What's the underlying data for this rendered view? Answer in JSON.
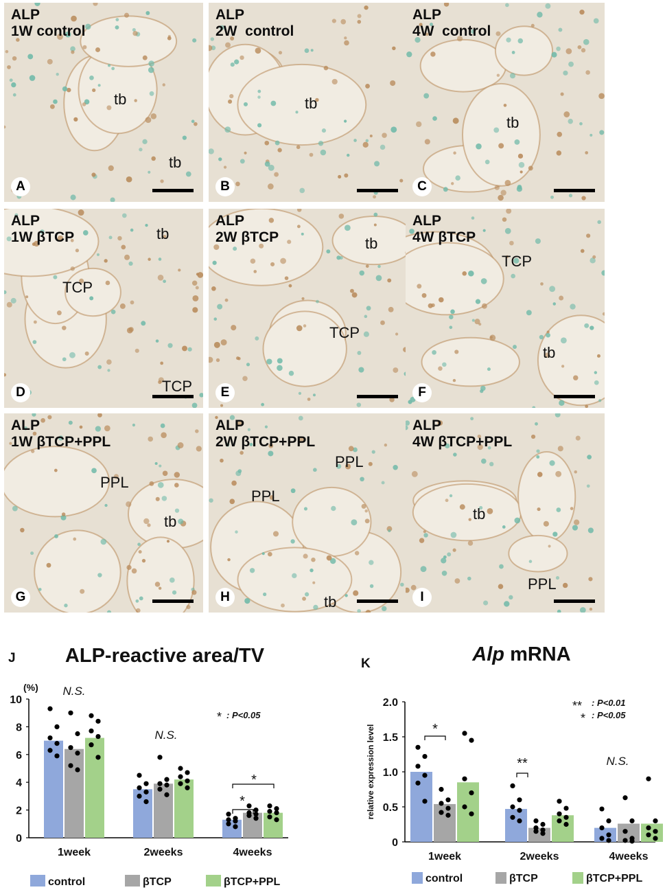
{
  "panels": [
    {
      "title": "ALP\n1W control",
      "letter": "A",
      "labels": [
        "tb",
        "tb"
      ]
    },
    {
      "title": "ALP\n2W  control",
      "letter": "B",
      "labels": [
        "tb"
      ]
    },
    {
      "title": "ALP\n4W  control",
      "letter": "C",
      "labels": [
        "tb"
      ]
    },
    {
      "title": "ALP\n1W βTCP",
      "letter": "D",
      "labels": [
        "tb",
        "TCP",
        "TCP"
      ]
    },
    {
      "title": "ALP\n2W βTCP",
      "letter": "E",
      "labels": [
        "tb",
        "TCP"
      ]
    },
    {
      "title": "ALP\n4W βTCP",
      "letter": "F",
      "labels": [
        "TCP",
        "tb"
      ]
    },
    {
      "title": "ALP\n1W βTCP+PPL",
      "letter": "G",
      "labels": [
        "PPL",
        "tb"
      ]
    },
    {
      "title": "ALP\n2W βTCP+PPL",
      "letter": "H",
      "labels": [
        "PPL",
        "PPL",
        "tb"
      ]
    },
    {
      "title": "ALP\n4W βTCP+PPL",
      "letter": "I",
      "labels": [
        "tb",
        "PPL"
      ]
    }
  ],
  "colors": {
    "control": "#8fa8db",
    "btcp": "#a6a6a6",
    "btcp_ppl": "#a3d18a",
    "stain": "#b88a5a",
    "counter": "#6fb9a8"
  },
  "chart_data": [
    {
      "type": "bar",
      "panel": "J",
      "title": "ALP-reactive area/TV",
      "unit": "(%)",
      "categories": [
        "1week",
        "2weeks",
        "4weeks"
      ],
      "series": [
        {
          "name": "control",
          "values": [
            7.0,
            3.5,
            1.3
          ],
          "points": [
            [
              9.3,
              8.0,
              7.2,
              6.8,
              6.3,
              5.9
            ],
            [
              4.5,
              3.9,
              3.6,
              3.3,
              3.0,
              2.6
            ],
            [
              1.7,
              1.4,
              1.3,
              1.2,
              1.0,
              0.8
            ]
          ]
        },
        {
          "name": "βTCP",
          "values": [
            6.4,
            3.9,
            1.8
          ],
          "points": [
            [
              9.0,
              7.5,
              6.5,
              6.1,
              5.2,
              4.9
            ],
            [
              5.8,
              4.2,
              3.9,
              3.8,
              3.5,
              3.1
            ],
            [
              2.3,
              2.0,
              1.8,
              1.7,
              1.6,
              1.4
            ]
          ]
        },
        {
          "name": "βTCP+PPL",
          "values": [
            7.2,
            4.2,
            1.8
          ],
          "points": [
            [
              8.8,
              8.4,
              7.7,
              7.3,
              6.7,
              5.8
            ],
            [
              5.0,
              4.7,
              4.4,
              4.1,
              3.9,
              3.6
            ],
            [
              2.3,
              2.1,
              1.9,
              1.8,
              1.5,
              1.3
            ]
          ]
        }
      ],
      "ylim": [
        0,
        10
      ],
      "yticks": [
        "0",
        "2",
        "4",
        "6",
        "8",
        "10"
      ],
      "annotations": {
        "group1": "N.S.",
        "group2": "N.S.",
        "sig1": "*",
        "sig2": "*",
        "legend_sym": "*",
        "legend_text": ": P<0.05"
      }
    },
    {
      "type": "bar",
      "panel": "K",
      "title_italic": "Alp",
      "title_rest": " mRNA",
      "ylabel": "relative expression level",
      "categories": [
        "1week",
        "2weeks",
        "4weeks"
      ],
      "series": [
        {
          "name": "control",
          "values": [
            1.0,
            0.47,
            0.2
          ],
          "points": [
            [
              1.35,
              1.22,
              1.08,
              0.95,
              0.84,
              0.58
            ],
            [
              0.8,
              0.6,
              0.5,
              0.45,
              0.35,
              0.3
            ],
            [
              0.47,
              0.3,
              0.2,
              0.1,
              0.05,
              0.02
            ]
          ]
        },
        {
          "name": "βTCP",
          "values": [
            0.54,
            0.2,
            0.26
          ],
          "points": [
            [
              0.75,
              0.6,
              0.55,
              0.48,
              0.42,
              0.38
            ],
            [
              0.3,
              0.25,
              0.2,
              0.17,
              0.15,
              0.12
            ],
            [
              0.63,
              0.3,
              0.15,
              0.05,
              0.02,
              0.01
            ]
          ]
        },
        {
          "name": "βTCP+PPL",
          "values": [
            0.85,
            0.38,
            0.26
          ],
          "points": [
            [
              1.55,
              1.45,
              0.9,
              0.7,
              0.5,
              0.4
            ],
            [
              0.58,
              0.48,
              0.4,
              0.35,
              0.3,
              0.25
            ],
            [
              0.9,
              0.3,
              0.2,
              0.15,
              0.1,
              0.05
            ]
          ]
        }
      ],
      "ylim": [
        0,
        2.0
      ],
      "yticks": [
        "0",
        "0.5",
        "1.0",
        "1.5",
        "2.0"
      ],
      "annotations": {
        "sig1": "*",
        "sig2": "**",
        "group3": "N.S.",
        "legend1_sym": "**",
        "legend1_text": ": P<0.01",
        "legend2_sym": "*",
        "legend2_text": ": P<0.05"
      }
    }
  ],
  "panel_J_letter": "J",
  "panel_K_letter": "K"
}
